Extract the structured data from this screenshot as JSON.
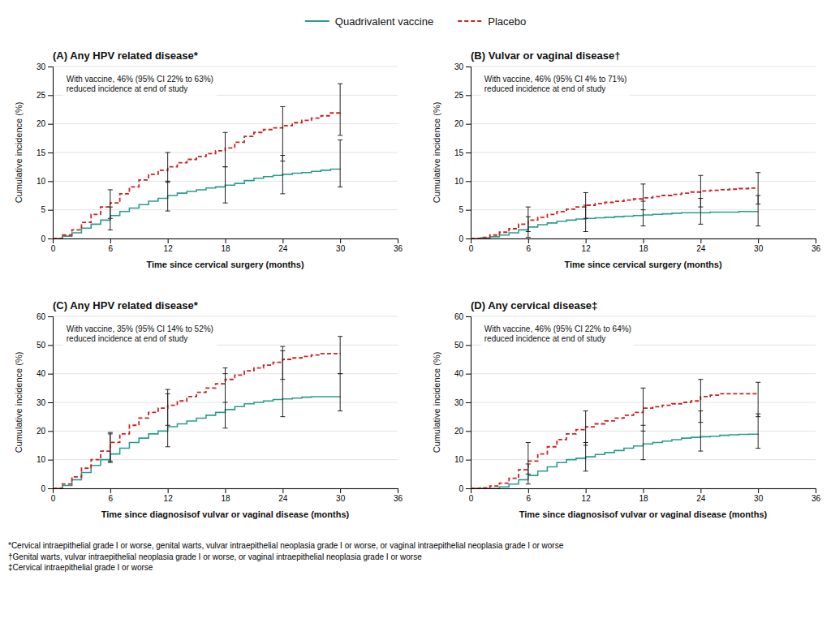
{
  "chart_data": [
    {
      "type": "step",
      "title": "(A) Any HPV related disease*",
      "annotation": "With vaccine, 46% (95% CI 22% to 63%)\nreduced incidence at end of study",
      "xlabel": "Time since cervical surgery (months)",
      "ylabel": "Cumulative incidence (%)",
      "xlim": [
        0,
        36
      ],
      "xticks": [
        0,
        6,
        12,
        18,
        24,
        30,
        36
      ],
      "ylim": [
        0,
        30
      ],
      "yticks": [
        0,
        5,
        10,
        15,
        20,
        25,
        30
      ],
      "grid": true,
      "series": [
        {
          "name": "Quadrivalent vaccine",
          "color": "#2a9d8f",
          "line_style": "solid",
          "x": [
            0,
            1,
            2,
            3,
            4,
            5,
            6,
            7,
            8,
            9,
            10,
            11,
            12,
            13,
            14,
            15,
            16,
            17,
            18,
            19,
            20,
            21,
            22,
            23,
            24,
            25,
            26,
            27,
            28,
            29,
            30
          ],
          "values": [
            0,
            0.4,
            1.0,
            1.8,
            2.5,
            3.2,
            4.0,
            4.7,
            5.3,
            5.9,
            6.5,
            7.0,
            7.5,
            7.9,
            8.2,
            8.5,
            8.8,
            9.0,
            9.3,
            9.6,
            10.1,
            10.5,
            10.8,
            11.0,
            11.2,
            11.4,
            11.5,
            11.7,
            11.9,
            12.1,
            12.2
          ],
          "error_bars": {
            "x": [
              6,
              12,
              18,
              24,
              30
            ],
            "y": [
              4.0,
              7.5,
              9.3,
              11.2,
              12.2
            ],
            "low": [
              1.5,
              4.8,
              6.2,
              7.8,
              9.0
            ],
            "high": [
              5.5,
              10.0,
              12.5,
              14.5,
              17.2
            ]
          }
        },
        {
          "name": "Placebo",
          "color": "#cc2222",
          "line_style": "dashed",
          "x": [
            0,
            1,
            2,
            3,
            4,
            5,
            6,
            7,
            8,
            9,
            10,
            11,
            12,
            13,
            14,
            15,
            16,
            17,
            18,
            19,
            20,
            21,
            22,
            23,
            24,
            25,
            26,
            27,
            28,
            29,
            30
          ],
          "values": [
            0,
            0.6,
            1.5,
            2.8,
            4.2,
            5.5,
            6.2,
            7.8,
            9.0,
            10.2,
            11.2,
            11.9,
            12.5,
            13.2,
            13.8,
            14.3,
            14.8,
            15.3,
            15.8,
            16.8,
            17.8,
            18.5,
            19.0,
            19.3,
            19.7,
            20.2,
            20.6,
            21.0,
            21.4,
            21.9,
            22.2
          ],
          "error_bars": {
            "x": [
              6,
              12,
              18,
              24,
              30
            ],
            "y": [
              6.2,
              12.5,
              15.8,
              19.7,
              22.2
            ],
            "low": [
              3.5,
              9.8,
              12.5,
              13.5,
              18.0
            ],
            "high": [
              8.5,
              15.0,
              18.5,
              23.0,
              27.0
            ]
          }
        }
      ]
    },
    {
      "type": "step",
      "title": "(B) Vulvar or vaginal disease†",
      "annotation": "With vaccine, 46% (95% CI 4% to 71%)\nreduced incidence at end of study",
      "xlabel": "Time since cervical surgery (months)",
      "ylabel": "Cumulative incidence (%)",
      "xlim": [
        0,
        36
      ],
      "xticks": [
        0,
        6,
        12,
        18,
        24,
        30,
        36
      ],
      "ylim": [
        0,
        30
      ],
      "yticks": [
        0,
        5,
        10,
        15,
        20,
        25,
        30
      ],
      "grid": true,
      "series": [
        {
          "name": "Quadrivalent vaccine",
          "color": "#2a9d8f",
          "line_style": "solid",
          "x": [
            0,
            1,
            2,
            3,
            4,
            5,
            6,
            7,
            8,
            9,
            10,
            11,
            12,
            13,
            14,
            15,
            16,
            17,
            18,
            19,
            20,
            21,
            22,
            23,
            24,
            25,
            26,
            27,
            28,
            29,
            30
          ],
          "values": [
            0,
            0.1,
            0.3,
            0.6,
            1.0,
            1.5,
            2.0,
            2.4,
            2.7,
            3.0,
            3.2,
            3.4,
            3.5,
            3.6,
            3.7,
            3.8,
            3.9,
            4.0,
            4.1,
            4.2,
            4.3,
            4.4,
            4.5,
            4.5,
            4.5,
            4.6,
            4.6,
            4.6,
            4.7,
            4.7,
            4.7
          ],
          "error_bars": {
            "x": [
              6,
              12,
              18,
              24,
              30
            ],
            "y": [
              2.0,
              3.5,
              4.1,
              4.5,
              4.7
            ],
            "low": [
              0.2,
              1.2,
              2.2,
              2.5,
              2.2
            ],
            "high": [
              3.8,
              5.8,
              6.5,
              7.0,
              7.5
            ]
          }
        },
        {
          "name": "Placebo",
          "color": "#cc2222",
          "line_style": "dashed",
          "x": [
            0,
            1,
            2,
            3,
            4,
            5,
            6,
            7,
            8,
            9,
            10,
            11,
            12,
            13,
            14,
            15,
            16,
            17,
            18,
            19,
            20,
            21,
            22,
            23,
            24,
            25,
            26,
            27,
            28,
            29,
            30
          ],
          "values": [
            0,
            0.2,
            0.6,
            1.1,
            1.7,
            2.5,
            3.2,
            3.7,
            4.2,
            4.7,
            5.1,
            5.5,
            5.8,
            6.1,
            6.3,
            6.5,
            6.7,
            6.9,
            7.1,
            7.3,
            7.5,
            7.7,
            7.9,
            8.1,
            8.3,
            8.4,
            8.5,
            8.6,
            8.7,
            8.8,
            8.8
          ],
          "error_bars": {
            "x": [
              6,
              12,
              18,
              24,
              30
            ],
            "y": [
              3.2,
              5.8,
              7.1,
              8.3,
              8.8
            ],
            "low": [
              1.2,
              3.5,
              5.0,
              5.5,
              6.0
            ],
            "high": [
              5.5,
              8.0,
              9.5,
              11.0,
              11.5
            ]
          }
        }
      ]
    },
    {
      "type": "step",
      "title": "(C) Any HPV related disease*",
      "annotation": "With vaccine, 35% (95% CI 14% to 52%)\nreduced incidence at end of study",
      "xlabel": "Time since diagnosisof vulvar or vaginal disease (months)",
      "ylabel": "Cumulative incidence (%)",
      "xlim": [
        0,
        36
      ],
      "xticks": [
        0,
        6,
        12,
        18,
        24,
        30,
        36
      ],
      "ylim": [
        0,
        60
      ],
      "yticks": [
        0,
        10,
        20,
        30,
        40,
        50,
        60
      ],
      "grid": true,
      "series": [
        {
          "name": "Quadrivalent vaccine",
          "color": "#2a9d8f",
          "line_style": "solid",
          "x": [
            0,
            1,
            2,
            3,
            4,
            5,
            6,
            7,
            8,
            9,
            10,
            11,
            12,
            13,
            14,
            15,
            16,
            17,
            18,
            19,
            20,
            21,
            22,
            23,
            24,
            25,
            26,
            27,
            28,
            29,
            30
          ],
          "values": [
            0,
            1.0,
            3.0,
            5.5,
            8.0,
            10.0,
            12.0,
            14.0,
            16.0,
            17.5,
            19.0,
            20.0,
            21.5,
            22.5,
            23.5,
            24.5,
            25.5,
            26.5,
            27.5,
            28.5,
            29.5,
            30.0,
            30.5,
            31.0,
            31.2,
            31.5,
            31.8,
            32.0,
            32.0,
            32.0,
            32.2
          ],
          "error_bars": {
            "x": [
              6,
              12,
              18,
              24,
              30
            ],
            "y": [
              12.0,
              21.5,
              27.5,
              31.2,
              32.2
            ],
            "low": [
              9.0,
              14.5,
              21.0,
              25.0,
              27.0
            ],
            "high": [
              19.0,
              33.0,
              40.0,
              48.0,
              40.0
            ]
          }
        },
        {
          "name": "Placebo",
          "color": "#cc2222",
          "line_style": "dashed",
          "x": [
            0,
            1,
            2,
            3,
            4,
            5,
            6,
            7,
            8,
            9,
            10,
            11,
            12,
            13,
            14,
            15,
            16,
            17,
            18,
            19,
            20,
            21,
            22,
            23,
            24,
            25,
            26,
            27,
            28,
            29,
            30
          ],
          "values": [
            0,
            1.5,
            4.0,
            7.0,
            10.0,
            13.0,
            16.0,
            19.0,
            22.0,
            24.5,
            26.5,
            28.0,
            29.0,
            30.5,
            32.0,
            33.5,
            35.0,
            36.5,
            38.0,
            39.5,
            41.0,
            42.0,
            43.0,
            44.0,
            45.0,
            45.5,
            46.0,
            46.5,
            47.0,
            47.0,
            47.2
          ],
          "error_bars": {
            "x": [
              6,
              12,
              18,
              24,
              30
            ],
            "y": [
              16.0,
              29.0,
              38.0,
              45.0,
              47.2
            ],
            "low": [
              9.5,
              22.0,
              30.0,
              38.0,
              40.0
            ],
            "high": [
              19.5,
              34.5,
              42.0,
              49.5,
              53.0
            ]
          }
        }
      ]
    },
    {
      "type": "step",
      "title": "(D) Any cervical disease‡",
      "annotation": "With vaccine, 46% (95% CI 22% to 64%)\nreduced incidence at end of study",
      "xlabel": "Time since diagnosisof vulvar or vaginal disease (months)",
      "ylabel": "Cumulative incidence (%)",
      "xlim": [
        0,
        36
      ],
      "xticks": [
        0,
        6,
        12,
        18,
        24,
        30,
        36
      ],
      "ylim": [
        0,
        60
      ],
      "yticks": [
        0,
        10,
        20,
        30,
        40,
        50,
        60
      ],
      "grid": true,
      "series": [
        {
          "name": "Quadrivalent vaccine",
          "color": "#2a9d8f",
          "line_style": "solid",
          "x": [
            0,
            1,
            2,
            3,
            4,
            5,
            6,
            7,
            8,
            9,
            10,
            11,
            12,
            13,
            14,
            15,
            16,
            17,
            18,
            19,
            20,
            21,
            22,
            23,
            24,
            25,
            26,
            27,
            28,
            29,
            30
          ],
          "values": [
            0,
            0.0,
            0.0,
            0.5,
            1.5,
            3.0,
            4.5,
            6.0,
            7.5,
            9.0,
            10.0,
            10.5,
            11.0,
            11.8,
            12.5,
            13.2,
            14.0,
            14.8,
            15.5,
            16.0,
            16.5,
            17.0,
            17.5,
            17.8,
            18.0,
            18.2,
            18.5,
            18.7,
            18.8,
            18.9,
            19.0
          ],
          "error_bars": {
            "x": [
              6,
              12,
              18,
              24,
              30
            ],
            "y": [
              4.5,
              11.0,
              15.5,
              18.0,
              19.0
            ],
            "low": [
              1.5,
              6.0,
              10.0,
              13.0,
              14.0
            ],
            "high": [
              8.5,
              16.0,
              22.0,
              27.0,
              26.0
            ]
          }
        },
        {
          "name": "Placebo",
          "color": "#cc2222",
          "line_style": "dashed",
          "x": [
            0,
            1,
            2,
            3,
            4,
            5,
            6,
            7,
            8,
            9,
            10,
            11,
            12,
            13,
            14,
            15,
            16,
            17,
            18,
            19,
            20,
            21,
            22,
            23,
            24,
            25,
            26,
            27,
            28,
            29,
            30
          ],
          "values": [
            0,
            0.2,
            0.8,
            1.8,
            3.5,
            6.5,
            9.5,
            12.0,
            14.5,
            17.0,
            19.0,
            20.5,
            21.5,
            22.5,
            23.5,
            24.5,
            25.5,
            26.5,
            28.0,
            28.5,
            29.0,
            29.5,
            30.0,
            30.5,
            32.0,
            32.5,
            33.0,
            33.0,
            33.0,
            33.0,
            33.2
          ],
          "error_bars": {
            "x": [
              6,
              12,
              18,
              24,
              30
            ],
            "y": [
              9.5,
              21.5,
              28.0,
              32.0,
              33.2
            ],
            "low": [
              5.0,
              15.0,
              20.0,
              23.0,
              25.0
            ],
            "high": [
              16.0,
              27.0,
              35.0,
              38.0,
              37.0
            ]
          }
        }
      ]
    }
  ],
  "footnotes": [
    "*Cervical intraepithelial grade I or worse, genital warts, vulvar intraepithelial neoplasia grade I or worse, or vaginal intraepithelial neoplasia grade I or worse",
    "†Genital warts, vulvar intraepithelial neoplasia grade I or worse, or vaginal intraepithelial neoplasia grade I or worse",
    "‡Cervical intraepithelial grade I or worse"
  ]
}
